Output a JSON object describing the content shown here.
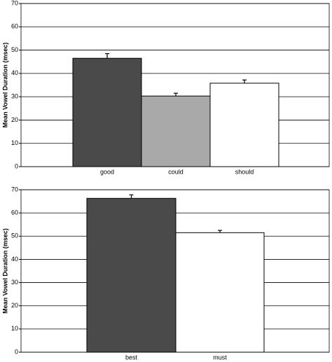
{
  "chart_data": [
    {
      "type": "bar",
      "y_label": "Mean Vowel Duration (msec)",
      "categories": [
        "good",
        "could",
        "should"
      ],
      "values": [
        46.5,
        30.3,
        35.8
      ],
      "errors": [
        2,
        1.2,
        1.4
      ],
      "colors": [
        "#4a4a4a",
        "#a9a9a9",
        "#ffffff"
      ],
      "ylim": [
        0,
        70
      ],
      "yticks": [
        0,
        10,
        20,
        30,
        40,
        50,
        60,
        70
      ],
      "grid": true
    },
    {
      "type": "bar",
      "y_label": "Mean Vowel Duration (msec)",
      "categories": [
        "best",
        "must"
      ],
      "values": [
        66.3,
        51.5
      ],
      "errors": [
        1.5,
        1
      ],
      "colors": [
        "#4a4a4a",
        "#ffffff"
      ],
      "ylim": [
        0,
        70
      ],
      "yticks": [
        0,
        10,
        20,
        30,
        40,
        50,
        60,
        70
      ],
      "grid": true
    }
  ]
}
